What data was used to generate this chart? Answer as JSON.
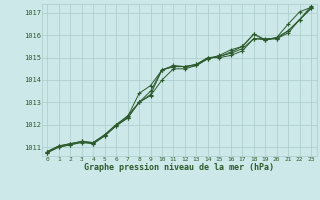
{
  "title": "Graphe pression niveau de la mer (hPa)",
  "bg_color": "#cce8e8",
  "grid_color": "#aacccc",
  "line_color": "#2d5a2d",
  "xlim": [
    -0.5,
    23.5
  ],
  "ylim": [
    1010.6,
    1017.4
  ],
  "xticks": [
    0,
    1,
    2,
    3,
    4,
    5,
    6,
    7,
    8,
    9,
    10,
    11,
    12,
    13,
    14,
    15,
    16,
    17,
    18,
    19,
    20,
    21,
    22,
    23
  ],
  "yticks": [
    1011,
    1012,
    1013,
    1014,
    1015,
    1016,
    1017
  ],
  "series": [
    [
      1010.8,
      1011.05,
      1011.15,
      1011.25,
      1011.2,
      1011.55,
      1012.0,
      1012.4,
      1013.0,
      1013.35,
      1014.45,
      1014.65,
      1014.6,
      1014.7,
      1015.0,
      1015.0,
      1015.1,
      1015.3,
      1015.85,
      1015.8,
      1015.85,
      1016.1,
      1016.7,
      1017.2
    ],
    [
      1010.8,
      1011.05,
      1011.15,
      1011.25,
      1011.2,
      1011.55,
      1012.0,
      1012.35,
      1013.4,
      1013.75,
      1014.45,
      1014.6,
      1014.6,
      1014.7,
      1015.0,
      1015.05,
      1015.2,
      1015.4,
      1015.85,
      1015.85,
      1015.85,
      1016.2,
      1016.7,
      1017.2
    ],
    [
      1010.75,
      1011.0,
      1011.1,
      1011.25,
      1011.15,
      1011.5,
      1011.95,
      1012.3,
      1013.0,
      1013.3,
      1014.0,
      1014.5,
      1014.5,
      1014.65,
      1014.95,
      1015.05,
      1015.25,
      1015.5,
      1016.05,
      1015.8,
      1015.9,
      1016.5,
      1017.05,
      1017.25
    ],
    [
      1010.75,
      1011.0,
      1011.1,
      1011.2,
      1011.15,
      1011.5,
      1011.95,
      1012.3,
      1013.0,
      1013.5,
      1014.45,
      1014.6,
      1014.6,
      1014.65,
      1014.95,
      1015.1,
      1015.35,
      1015.5,
      1016.05,
      1015.8,
      1015.9,
      1016.2,
      1016.7,
      1017.3
    ]
  ]
}
